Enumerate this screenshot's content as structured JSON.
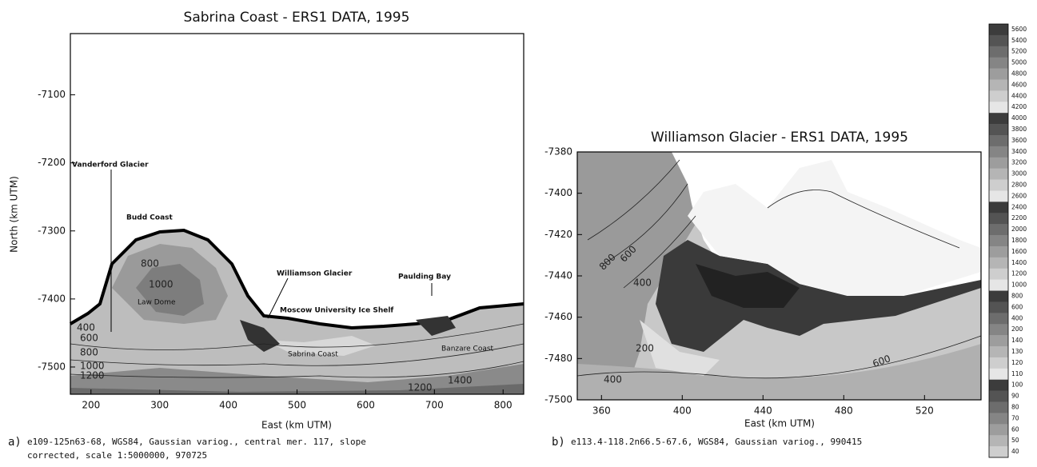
{
  "chart_data": [
    {
      "type": "contour",
      "title": "Sabrina Coast - ERS1 DATA, 1995",
      "xlabel": "East (km UTM)",
      "ylabel": "North (km UTM)",
      "xlim": [
        170,
        830
      ],
      "ylim": [
        -7540,
        -7010
      ],
      "xticks": [
        200,
        300,
        400,
        500,
        600,
        700,
        800
      ],
      "yticks": [
        -7500,
        -7400,
        -7300,
        -7200,
        -7100
      ],
      "annotations": [
        "Vanderford Glacier",
        "Budd Coast",
        "Law Dome",
        "Williamson Glacier",
        "Moscow University Ice Shelf",
        "Paulding Bay",
        "Sabrina Coast",
        "Banzare Coast"
      ],
      "contour_labels": [
        800,
        1000,
        400,
        600,
        800,
        1000,
        1200,
        1200,
        1400
      ],
      "caption_label": "a)",
      "caption": [
        "e109-125n63-68, WGS84, Gaussian variog., central mer. 117, slope",
        "corrected, scale 1:5000000, 970725"
      ]
    },
    {
      "type": "contour",
      "title": "Williamson Glacier - ERS1 DATA, 1995",
      "xlabel": "East (km UTM)",
      "xlim": [
        348,
        548
      ],
      "ylim": [
        -7500,
        -7380
      ],
      "xticks": [
        360,
        400,
        440,
        480,
        520
      ],
      "yticks": [
        -7500,
        -7480,
        -7460,
        -7440,
        -7420,
        -7400,
        -7380
      ],
      "contour_labels": [
        800,
        600,
        400,
        200,
        400,
        600
      ],
      "caption_label": "b)",
      "caption": [
        "e113.4-118.2n66.5-67.6, WGS84, Gaussian variog., 990415"
      ]
    }
  ],
  "colorbar": {
    "levels": [
      5600,
      5400,
      5200,
      5000,
      4800,
      4600,
      4400,
      4200,
      4000,
      3800,
      3600,
      3400,
      3200,
      3000,
      2800,
      2600,
      2400,
      2200,
      2000,
      1800,
      1600,
      1400,
      1200,
      1000,
      800,
      600,
      400,
      200,
      140,
      130,
      120,
      110,
      100,
      90,
      80,
      70,
      60,
      50,
      40
    ]
  }
}
